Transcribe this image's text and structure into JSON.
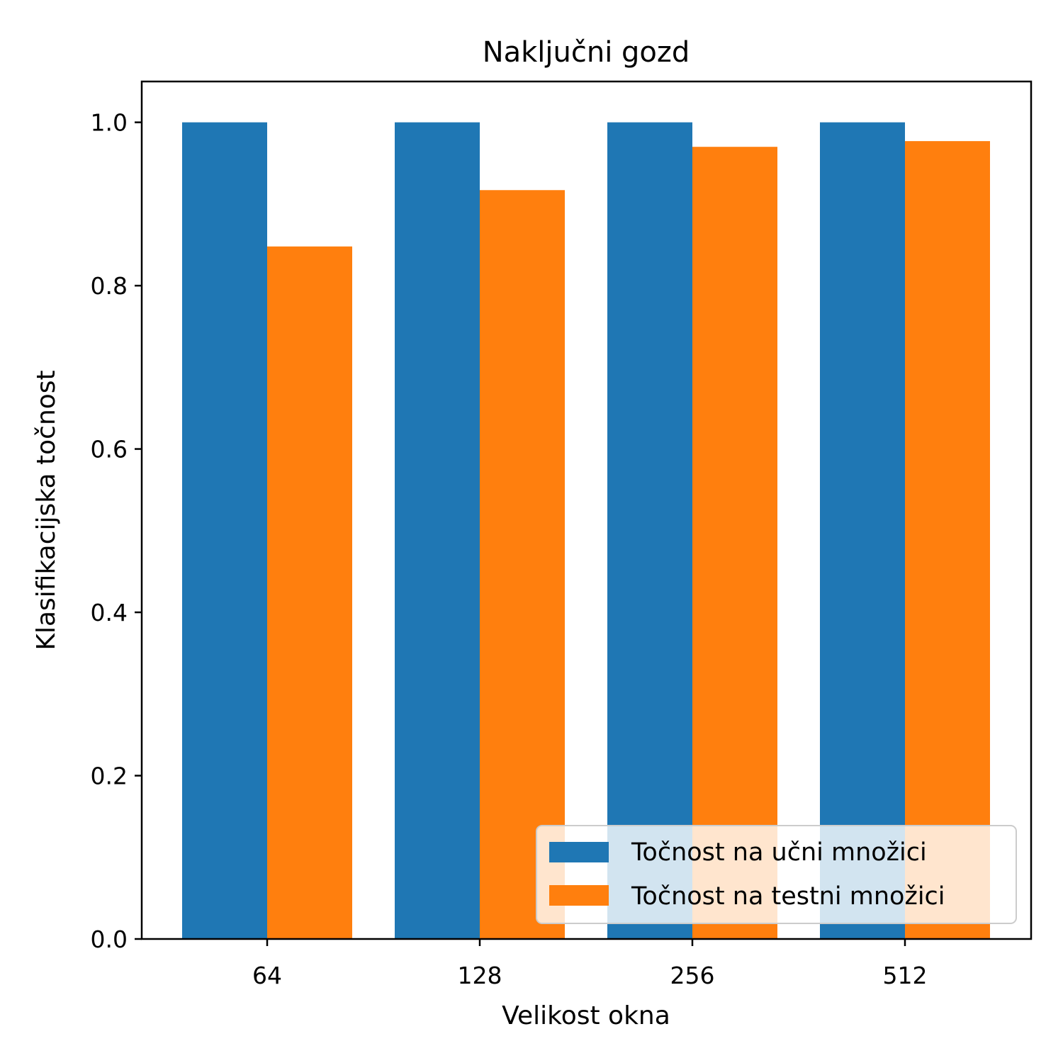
{
  "chart_data": {
    "type": "bar",
    "title": "Naključni gozd",
    "xlabel": "Velikost okna",
    "ylabel": "Klasifikacijska točnost",
    "categories": [
      "64",
      "128",
      "256",
      "512"
    ],
    "series": [
      {
        "name": "Točnost na učni množici",
        "color": "#1f77b4",
        "values": [
          1.0,
          1.0,
          1.0,
          1.0
        ]
      },
      {
        "name": "Točnost na testni množici",
        "color": "#ff7f0e",
        "values": [
          0.848,
          0.917,
          0.97,
          0.977
        ]
      }
    ],
    "ylim": [
      0,
      1.05
    ],
    "yticks": [
      "0.0",
      "0.2",
      "0.4",
      "0.6",
      "0.8",
      "1.0"
    ],
    "grid": false,
    "legend_position": "lower right"
  }
}
